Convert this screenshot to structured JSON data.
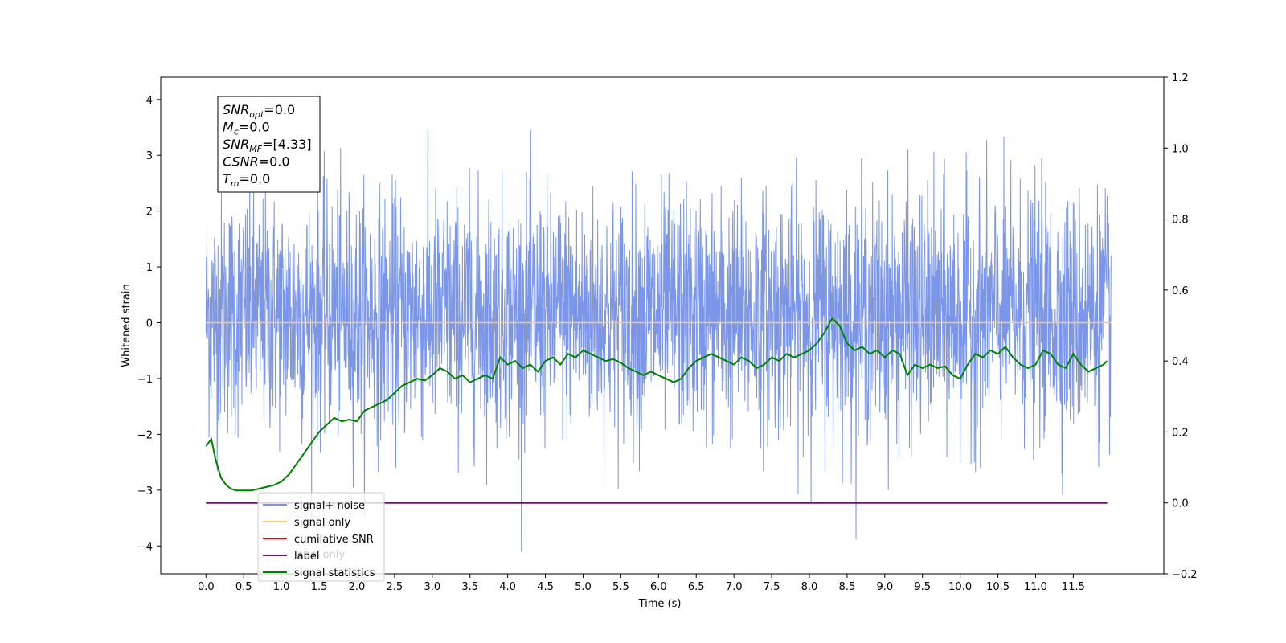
{
  "chart_data": {
    "type": "line",
    "xlabel": "Time (s)",
    "ylabel": "Whitened strain",
    "xlim": [
      -0.6,
      12.7
    ],
    "ylim": [
      -4.5,
      4.4
    ],
    "y2lim": [
      -0.2,
      1.2
    ],
    "x_ticks": [
      0.0,
      0.5,
      1.0,
      1.5,
      2.0,
      2.5,
      3.0,
      3.5,
      4.0,
      4.5,
      5.0,
      5.5,
      6.0,
      6.5,
      7.0,
      7.5,
      8.0,
      8.5,
      9.0,
      9.5,
      10.0,
      10.5,
      11.0,
      11.5
    ],
    "x_tick_labels": [
      "0.0",
      "0.5",
      "1.0",
      "1.5",
      "2.0",
      "2.5",
      "3.0",
      "3.5",
      "4.0",
      "4.5",
      "5.0",
      "5.5",
      "6.0",
      "6.5",
      "7.0",
      "7.5",
      "8.0",
      "8.5",
      "9.0",
      "9.5",
      "10.0",
      "10.5",
      "11.0",
      "11.5"
    ],
    "y_ticks": [
      -4,
      -3,
      -2,
      -1,
      0,
      1,
      2,
      3,
      4
    ],
    "y_tick_labels": [
      "−4",
      "−3",
      "−2",
      "−1",
      "0",
      "1",
      "2",
      "3",
      "4"
    ],
    "y2_ticks": [
      -0.2,
      0.0,
      0.2,
      0.4,
      0.6,
      0.8,
      1.0,
      1.2
    ],
    "y2_tick_labels": [
      "−0.2",
      "0.0",
      "0.2",
      "0.4",
      "0.6",
      "0.8",
      "1.0",
      "1.2"
    ],
    "annotation": {
      "lines": [
        {
          "var": "SNR",
          "sub": "opt",
          "value": "=0.0"
        },
        {
          "var": "M",
          "sub": "c",
          "value": "=0.0"
        },
        {
          "var": "SNR",
          "sub": "MF",
          "value": "=[4.33]"
        },
        {
          "var": "CSNR",
          "sub": "",
          "value": "=0.0"
        },
        {
          "var": "T",
          "sub": "m",
          "value": "=0.0"
        }
      ]
    },
    "legend": {
      "placement": "lower-left",
      "entries": [
        {
          "label": "signal+ noise",
          "color": "#7b96e8"
        },
        {
          "label": "signal only",
          "color": "#ffc870"
        },
        {
          "label": "cumilative SNR",
          "color": "#ff0000"
        },
        {
          "label": "label",
          "color": "#6e0f6e"
        },
        {
          "label": "signal statistics",
          "color": "#008000"
        }
      ]
    },
    "background_legend_label": "label only",
    "series": [
      {
        "name": "signal+ noise",
        "axis": "left",
        "color": "#7b96e8",
        "style": "noise",
        "x_range": [
          0.0,
          12.0
        ],
        "band": [
          -1.8,
          2.1
        ],
        "y_range_observed": [
          -4.1,
          3.45
        ]
      },
      {
        "name": "signal only",
        "axis": "left",
        "color": "#ffc870",
        "x": [
          0.0,
          12.0
        ],
        "y": [
          0.0,
          0.0
        ]
      },
      {
        "name": "label",
        "axis": "right",
        "color": "#6e0f6e",
        "x": [
          0.0,
          11.95
        ],
        "y": [
          0.0,
          0.0
        ]
      },
      {
        "name": "signal statistics",
        "axis": "right",
        "color": "#008000",
        "x": [
          0.0,
          0.07,
          0.13,
          0.2,
          0.27,
          0.33,
          0.4,
          0.5,
          0.6,
          0.7,
          0.8,
          0.9,
          1.0,
          1.1,
          1.2,
          1.3,
          1.4,
          1.5,
          1.6,
          1.7,
          1.8,
          1.9,
          2.0,
          2.1,
          2.2,
          2.3,
          2.4,
          2.5,
          2.6,
          2.7,
          2.8,
          2.9,
          3.0,
          3.1,
          3.2,
          3.3,
          3.4,
          3.5,
          3.6,
          3.7,
          3.8,
          3.9,
          4.0,
          4.1,
          4.2,
          4.3,
          4.4,
          4.5,
          4.6,
          4.7,
          4.8,
          4.9,
          5.0,
          5.1,
          5.2,
          5.3,
          5.4,
          5.5,
          5.6,
          5.7,
          5.8,
          5.9,
          6.0,
          6.1,
          6.2,
          6.3,
          6.4,
          6.5,
          6.6,
          6.7,
          6.8,
          6.9,
          7.0,
          7.1,
          7.2,
          7.3,
          7.4,
          7.5,
          7.6,
          7.7,
          7.8,
          7.9,
          8.0,
          8.1,
          8.2,
          8.3,
          8.4,
          8.5,
          8.6,
          8.7,
          8.8,
          8.9,
          9.0,
          9.1,
          9.2,
          9.3,
          9.4,
          9.5,
          9.6,
          9.7,
          9.8,
          9.9,
          10.0,
          10.1,
          10.2,
          10.3,
          10.4,
          10.5,
          10.6,
          10.7,
          10.8,
          10.9,
          11.0,
          11.1,
          11.2,
          11.3,
          11.4,
          11.5,
          11.6,
          11.7,
          11.8,
          11.9,
          11.95
        ],
        "y": [
          0.16,
          0.18,
          0.12,
          0.07,
          0.05,
          0.04,
          0.035,
          0.035,
          0.035,
          0.04,
          0.045,
          0.05,
          0.06,
          0.08,
          0.11,
          0.14,
          0.17,
          0.2,
          0.22,
          0.24,
          0.23,
          0.235,
          0.23,
          0.26,
          0.27,
          0.28,
          0.29,
          0.31,
          0.33,
          0.34,
          0.35,
          0.345,
          0.36,
          0.38,
          0.37,
          0.35,
          0.36,
          0.34,
          0.35,
          0.36,
          0.35,
          0.41,
          0.39,
          0.4,
          0.38,
          0.39,
          0.37,
          0.4,
          0.41,
          0.39,
          0.42,
          0.41,
          0.43,
          0.42,
          0.41,
          0.4,
          0.405,
          0.395,
          0.38,
          0.37,
          0.36,
          0.37,
          0.36,
          0.35,
          0.34,
          0.35,
          0.38,
          0.4,
          0.41,
          0.42,
          0.41,
          0.4,
          0.39,
          0.41,
          0.4,
          0.38,
          0.39,
          0.41,
          0.4,
          0.42,
          0.41,
          0.42,
          0.43,
          0.45,
          0.48,
          0.52,
          0.5,
          0.45,
          0.43,
          0.44,
          0.42,
          0.43,
          0.41,
          0.43,
          0.42,
          0.36,
          0.39,
          0.38,
          0.39,
          0.38,
          0.385,
          0.36,
          0.35,
          0.39,
          0.42,
          0.41,
          0.43,
          0.42,
          0.44,
          0.41,
          0.39,
          0.38,
          0.39,
          0.43,
          0.42,
          0.39,
          0.38,
          0.42,
          0.39,
          0.37,
          0.38,
          0.39,
          0.4
        ]
      }
    ]
  }
}
